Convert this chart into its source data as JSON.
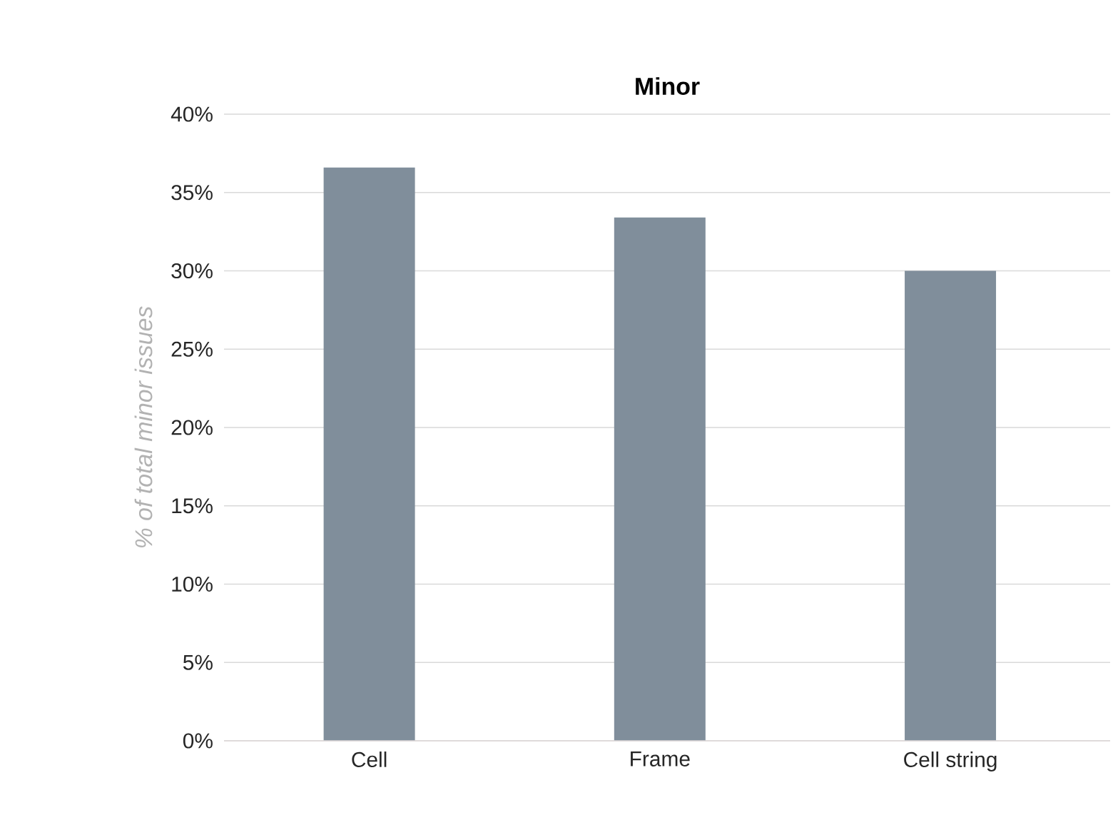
{
  "chart_data": {
    "type": "bar",
    "title": "Minor",
    "ylabel": "% of total minor issues",
    "categories": [
      "Cell",
      "Frame",
      "Cell string"
    ],
    "values": [
      36.6,
      33.4,
      30.0
    ],
    "color": "#808e9b",
    "ylim": [
      0,
      40
    ],
    "yticks": [
      {
        "value": 0,
        "label": "0%"
      },
      {
        "value": 5,
        "label": "5%"
      },
      {
        "value": 10,
        "label": "10%"
      },
      {
        "value": 15,
        "label": "15%"
      },
      {
        "value": 20,
        "label": "20%"
      },
      {
        "value": 25,
        "label": "25%"
      },
      {
        "value": 30,
        "label": "30%"
      },
      {
        "value": 35,
        "label": "35%"
      },
      {
        "value": 40,
        "label": "40%"
      }
    ],
    "grid": "y"
  }
}
